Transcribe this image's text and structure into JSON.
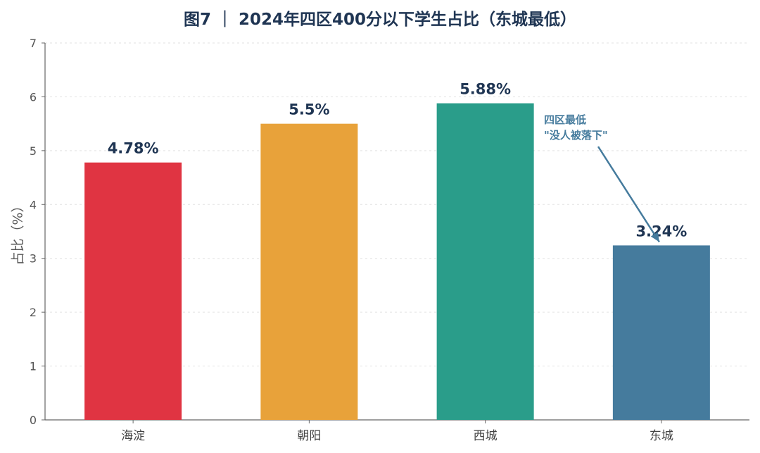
{
  "chart_data": {
    "type": "bar",
    "title": "图7 ｜ 2024年四区400分以下学生占比（东城最低）",
    "xlabel": "",
    "ylabel": "占比（%）",
    "categories": [
      "海淀",
      "朝阳",
      "西城",
      "东城"
    ],
    "values": [
      4.78,
      5.5,
      5.88,
      3.24
    ],
    "value_labels": [
      "4.78%",
      "5.5%",
      "5.88%",
      "3.24%"
    ],
    "colors": [
      "#e03442",
      "#e8a23a",
      "#2a9d8a",
      "#457b9d"
    ],
    "ylim": [
      0,
      7
    ],
    "yticks": [
      0,
      1,
      2,
      3,
      4,
      5,
      6,
      7
    ],
    "grid": true,
    "annotation": {
      "lines": [
        "四区最低",
        "\"没人被落下\""
      ],
      "target": "东城",
      "color": "#457b9d"
    }
  }
}
